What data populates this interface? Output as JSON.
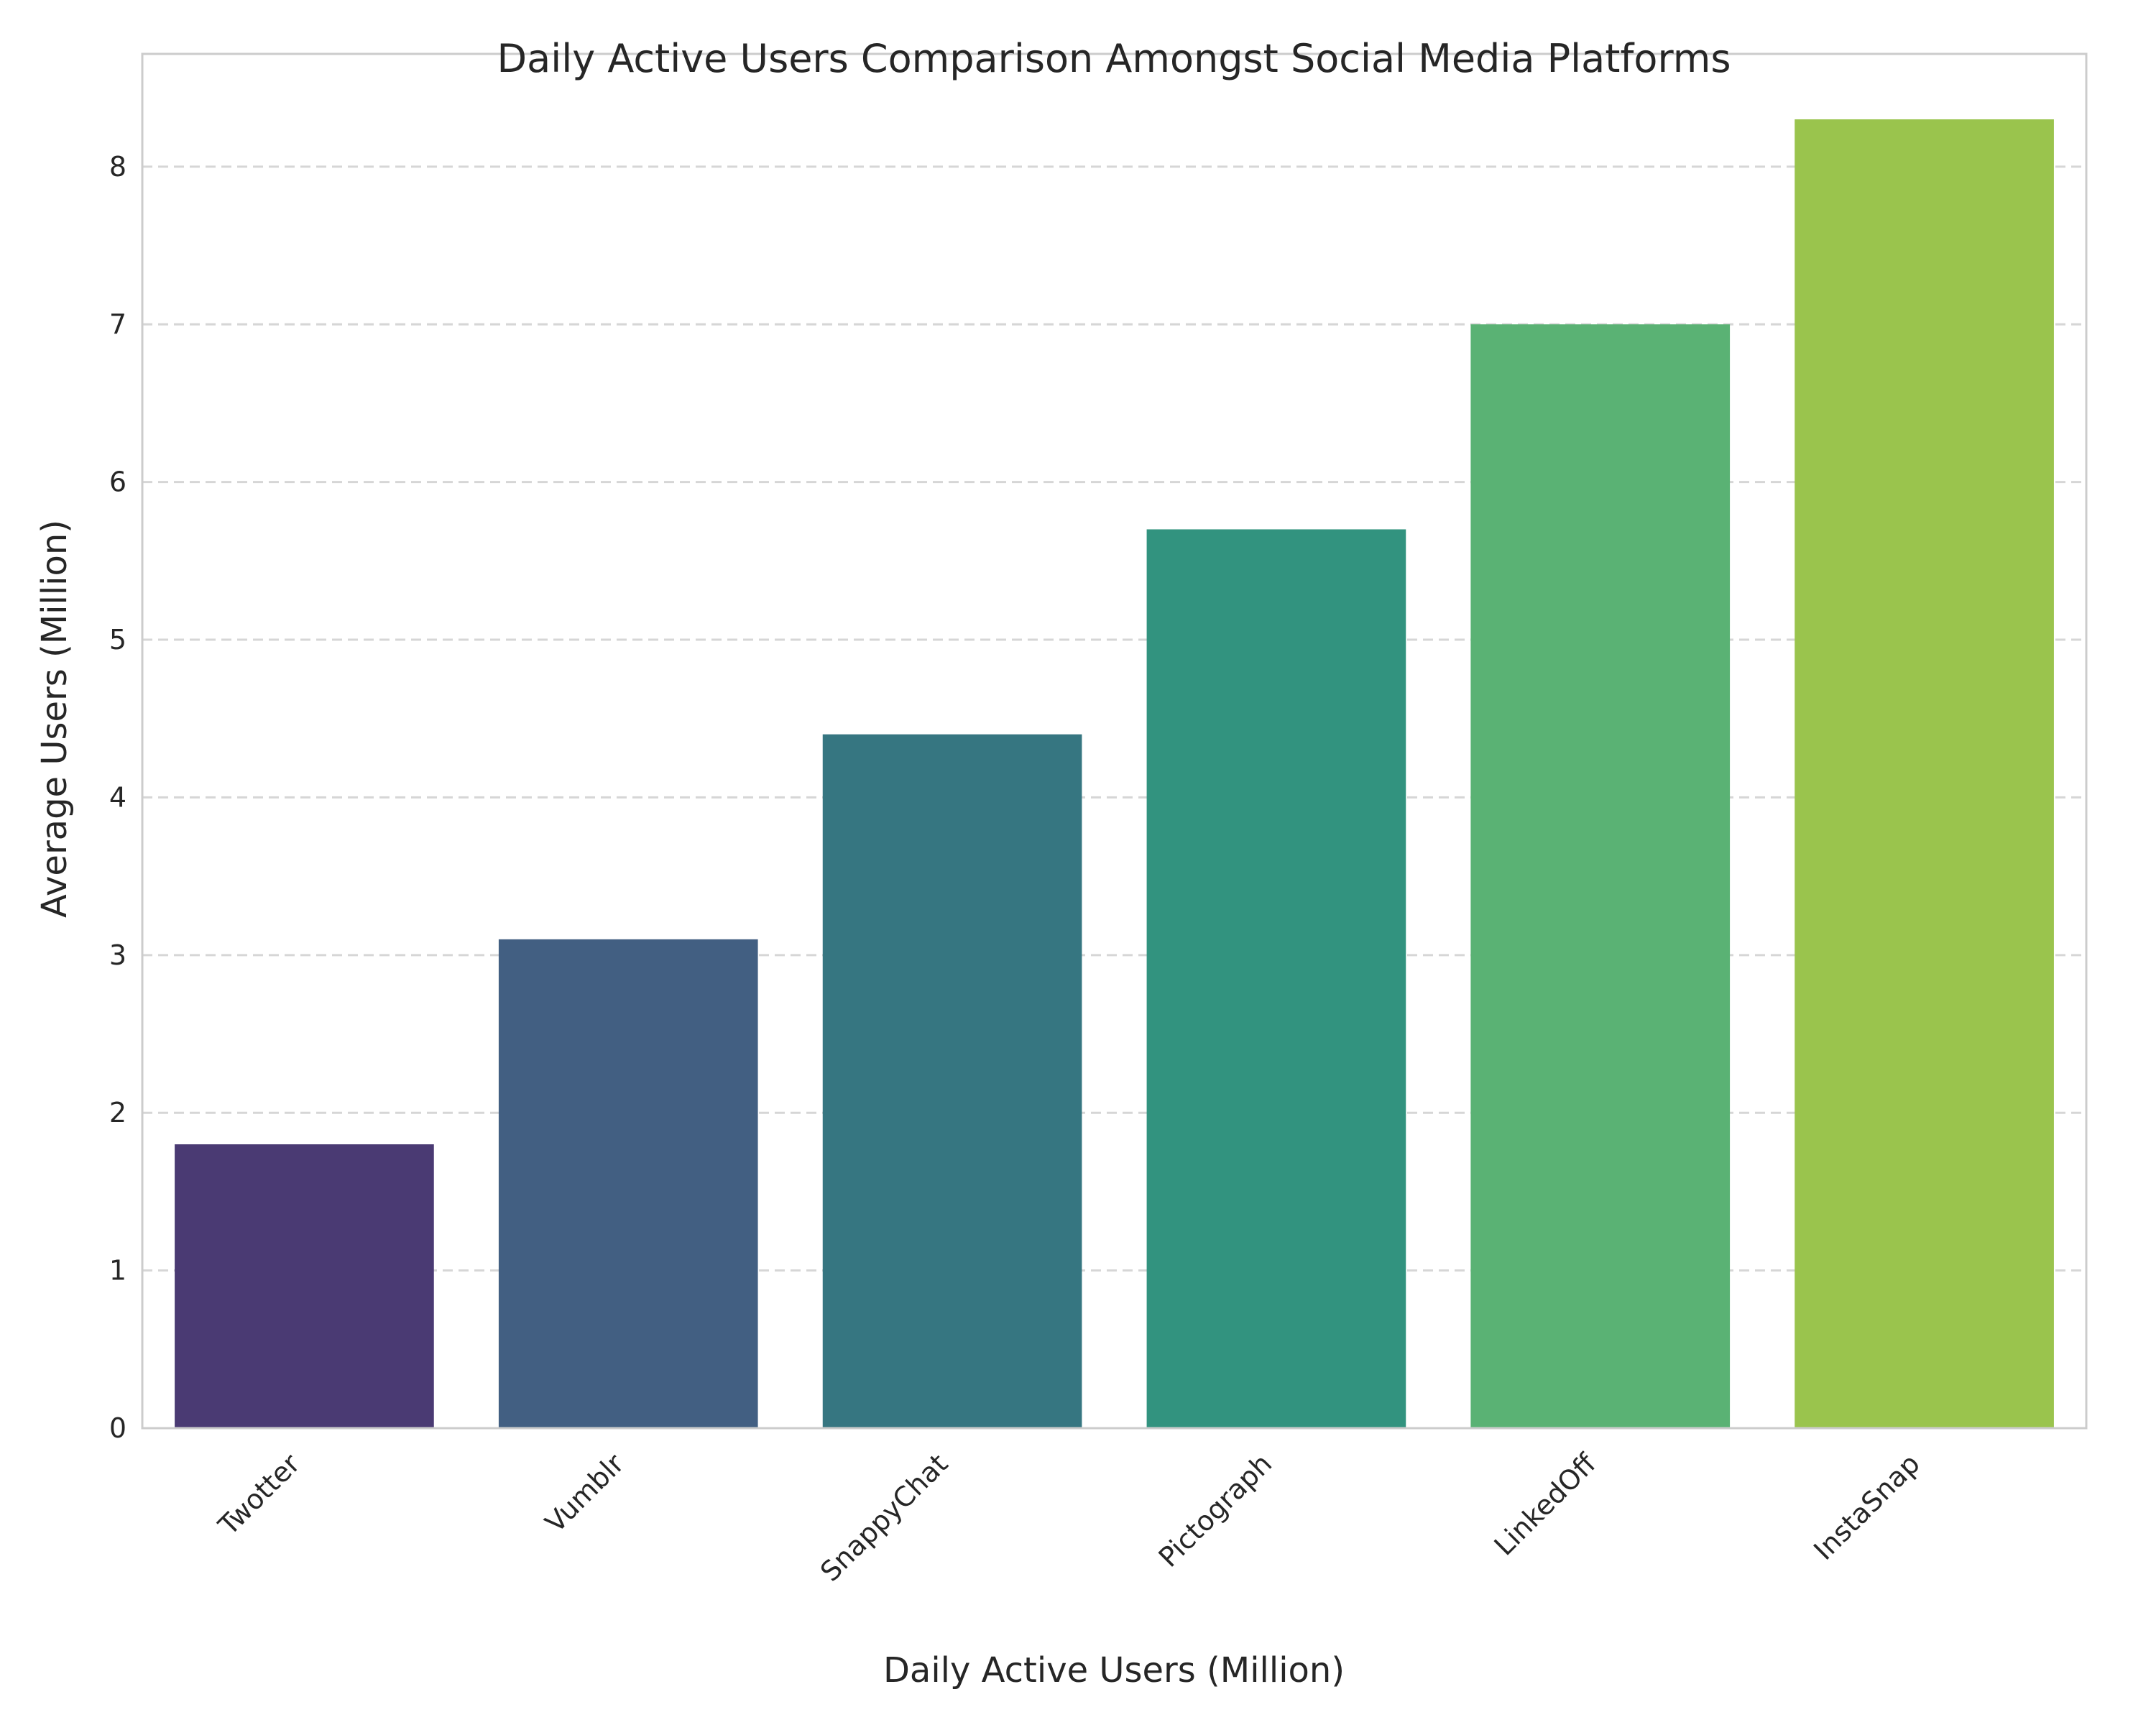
{
  "chart_data": {
    "type": "bar",
    "title": "Daily Active Users Comparison Amongst Social Media Platforms",
    "xlabel": "Daily Active Users (Million)",
    "ylabel": "Average Users (Million)",
    "categories": [
      "Twotter",
      "Vumblr",
      "SnappyChat",
      "Pictograph",
      "LinkedOff",
      "InstaSnap"
    ],
    "values": [
      1.8,
      3.1,
      4.4,
      5.7,
      7.0,
      8.3
    ],
    "colors": [
      "#4a3a73",
      "#425f82",
      "#367681",
      "#32937f",
      "#5ab274",
      "#9ac44d"
    ],
    "ylim": [
      0,
      8.715
    ],
    "yticks": [
      0,
      1,
      2,
      3,
      4,
      5,
      6,
      7,
      8
    ],
    "grid": "horizontal-dashed",
    "legend": "none"
  }
}
